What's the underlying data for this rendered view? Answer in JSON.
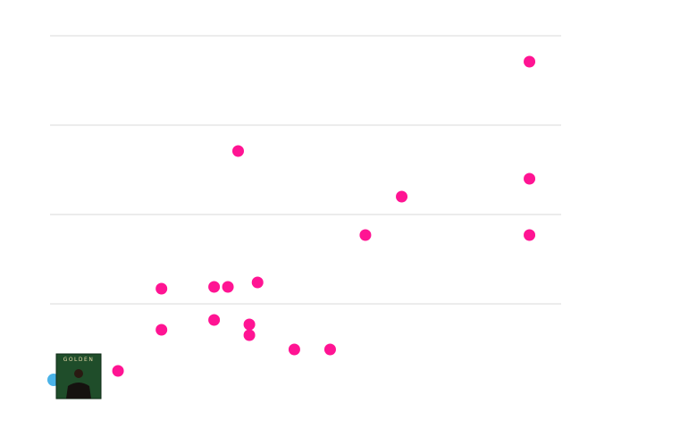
{
  "colors": {
    "background": "#ffffff",
    "grid": "#d9d9d9",
    "point": "#ff1493",
    "highlight": "#4ab3e8",
    "album_bg": "#1f4d2a"
  },
  "album": {
    "icon": "album-cover-icon",
    "cover_text": "GOLDEN"
  },
  "chart_data": {
    "type": "scatter",
    "title": "",
    "xlabel": "",
    "ylabel": "",
    "xlim": [
      0,
      100
    ],
    "ylim": [
      0,
      100
    ],
    "grid": true,
    "gridlines_y": [
      25,
      50,
      75,
      100
    ],
    "highlight": {
      "x": 0,
      "y": 4
    },
    "series": [
      {
        "points": [
          {
            "x": 13.3,
            "y": 6.25
          },
          {
            "x": 21.8,
            "y": 17.75
          },
          {
            "x": 32.1,
            "y": 20.5
          },
          {
            "x": 39.0,
            "y": 16.25
          },
          {
            "x": 39.0,
            "y": 19.25
          },
          {
            "x": 47.8,
            "y": 12.25
          },
          {
            "x": 54.8,
            "y": 12.25
          },
          {
            "x": 21.8,
            "y": 29.25
          },
          {
            "x": 32.1,
            "y": 29.75
          },
          {
            "x": 34.8,
            "y": 29.75
          },
          {
            "x": 40.6,
            "y": 31.0
          },
          {
            "x": 61.7,
            "y": 44.25
          },
          {
            "x": 93.8,
            "y": 44.25
          },
          {
            "x": 68.8,
            "y": 55.0
          },
          {
            "x": 93.8,
            "y": 60.0
          },
          {
            "x": 36.8,
            "y": 67.75
          },
          {
            "x": 93.8,
            "y": 92.75
          }
        ]
      }
    ]
  }
}
